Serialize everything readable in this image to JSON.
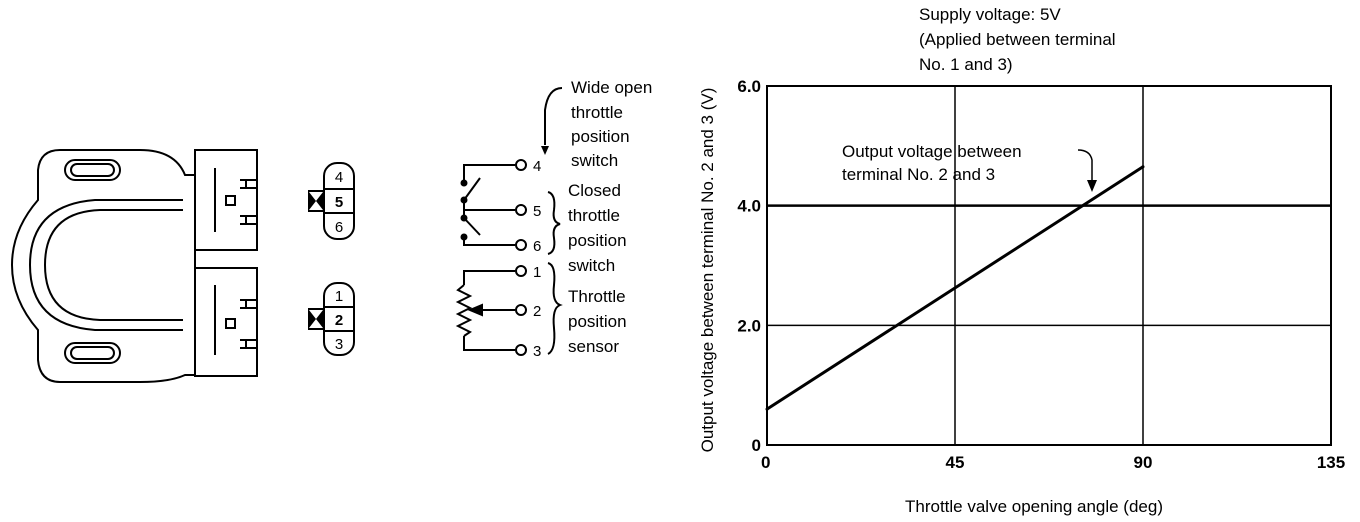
{
  "connectors": {
    "upper_pins": [
      "4",
      "5",
      "6"
    ],
    "lower_pins": [
      "1",
      "2",
      "3"
    ]
  },
  "circuit": {
    "terminals": [
      "4",
      "5",
      "6",
      "1",
      "2",
      "3"
    ],
    "labels": {
      "wide_open": [
        "Wide open",
        "throttle",
        "position",
        "switch"
      ],
      "closed": [
        "Closed",
        "throttle",
        "position",
        "switch"
      ],
      "sensor": [
        "Throttle",
        "position",
        "sensor"
      ]
    }
  },
  "chart": {
    "supply_note": [
      "Supply voltage: 5V",
      "(Applied between terminal",
      "No. 1 and 3)"
    ],
    "annotation": [
      "Output voltage between",
      "terminal No. 2 and 3"
    ],
    "ylabel": "Output voltage between terminal No. 2 and 3 (V)",
    "xlabel": "Throttle valve opening angle (deg)"
  },
  "chart_data": {
    "type": "line",
    "x": [
      0,
      90
    ],
    "series": [
      {
        "values": [
          0.6,
          4.65
        ]
      }
    ],
    "xlabel": "Throttle valve opening angle (deg)",
    "ylabel": "Output voltage between terminal No. 2 and 3 (V)",
    "xlim": [
      0,
      135
    ],
    "ylim": [
      0,
      6.0
    ],
    "xticks": [
      0,
      45,
      90,
      135
    ],
    "yticks": [
      0,
      2.0,
      4.0,
      6.0
    ],
    "xtick_labels": [
      "0",
      "45",
      "90",
      "135"
    ],
    "ytick_labels": [
      "0",
      "2.0",
      "4.0",
      "6.0"
    ],
    "grid": true,
    "annotations": [
      "Supply voltage: 5V",
      "(Applied between terminal",
      "No. 1 and 3)",
      "Output voltage between",
      "terminal No. 2 and 3"
    ]
  }
}
